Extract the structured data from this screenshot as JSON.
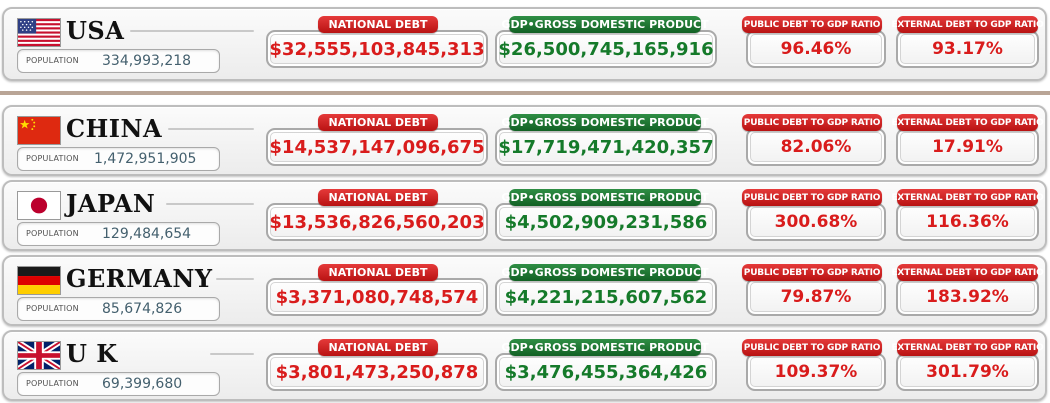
{
  "labels": {
    "population": "POPULATION",
    "national_debt": "NATIONAL DEBT",
    "gdp": "GDP•GROSS DOMESTIC PRODUCT",
    "public_ratio": "PUBLIC DEBT TO GDP RATIO",
    "external_ratio": "EXTERNAL DEBT TO GDP RATIO"
  },
  "colors": {
    "debt_red": "#d91c1c",
    "gdp_green": "#157a2a",
    "divider": "#b9a596"
  },
  "countries": [
    {
      "name": "USA",
      "flag_icon": "usa-flag-icon",
      "population": "334,993,218",
      "national_debt": "$32,555,103,845,313",
      "gdp": "$26,500,745,165,916",
      "public_ratio": "96.46%",
      "external_ratio": "93.17%"
    },
    {
      "name": "CHINA",
      "flag_icon": "china-flag-icon",
      "population": "1,472,951,905",
      "national_debt": "$14,537,147,096,675",
      "gdp": "$17,719,471,420,357",
      "public_ratio": "82.06%",
      "external_ratio": "17.91%"
    },
    {
      "name": "JAPAN",
      "flag_icon": "japan-flag-icon",
      "population": "129,484,654",
      "national_debt": "$13,536,826,560,203",
      "gdp": "$4,502,909,231,586",
      "public_ratio": "300.68%",
      "external_ratio": "116.36%"
    },
    {
      "name": "GERMANY",
      "flag_icon": "germany-flag-icon",
      "population": "85,674,826",
      "national_debt": "$3,371,080,748,574",
      "gdp": "$4,221,215,607,562",
      "public_ratio": "79.87%",
      "external_ratio": "183.92%"
    },
    {
      "name": "U K",
      "flag_icon": "uk-flag-icon",
      "population": "69,399,680",
      "national_debt": "$3,801,473,250,878",
      "gdp": "$3,476,455,364,426",
      "public_ratio": "109.37%",
      "external_ratio": "301.79%"
    }
  ]
}
